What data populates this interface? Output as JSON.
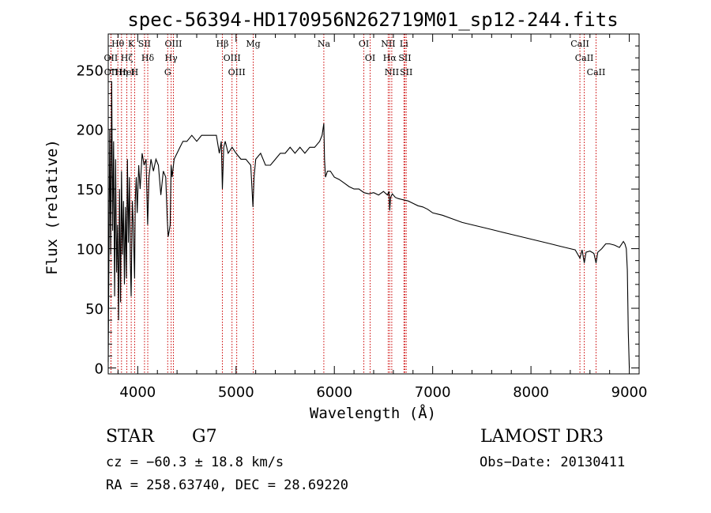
{
  "chart_data": {
    "type": "line",
    "title": "spec-56394-HD170956N262719M01_sp12-244.fits",
    "xlabel": "Wavelength (Å)",
    "ylabel": "Flux (relative)",
    "xlim": [
      3700,
      9100
    ],
    "ylim": [
      -5,
      280
    ],
    "xticks": [
      4000,
      5000,
      6000,
      7000,
      8000,
      9000
    ],
    "yticks": [
      0,
      50,
      100,
      150,
      200,
      250
    ],
    "line_color": "#000000",
    "marker_color": "#cc0000",
    "spectrum": {
      "name": "flux",
      "x": [
        3700,
        3715,
        3725,
        3735,
        3745,
        3755,
        3765,
        3775,
        3785,
        3795,
        3805,
        3815,
        3825,
        3835,
        3845,
        3855,
        3865,
        3875,
        3885,
        3895,
        3905,
        3915,
        3925,
        3933,
        3945,
        3955,
        3968,
        3975,
        3985,
        3995,
        4010,
        4025,
        4045,
        4065,
        4085,
        4101,
        4115,
        4135,
        4160,
        4185,
        4210,
        4235,
        4260,
        4285,
        4300,
        4310,
        4320,
        4330,
        4340,
        4350,
        4370,
        4400,
        4430,
        4460,
        4500,
        4550,
        4600,
        4650,
        4700,
        4750,
        4800,
        4830,
        4850,
        4861,
        4875,
        4890,
        4920,
        4960,
        5000,
        5050,
        5100,
        5150,
        5172,
        5183,
        5200,
        5250,
        5300,
        5350,
        5400,
        5450,
        5500,
        5550,
        5600,
        5650,
        5700,
        5750,
        5800,
        5850,
        5875,
        5893,
        5900,
        5910,
        5930,
        5960,
        6000,
        6050,
        6100,
        6150,
        6200,
        6250,
        6300,
        6350,
        6400,
        6450,
        6500,
        6540,
        6555,
        6563,
        6572,
        6590,
        6620,
        6650,
        6700,
        6750,
        6800,
        6850,
        6900,
        6950,
        7000,
        7100,
        7200,
        7300,
        7400,
        7500,
        7600,
        7700,
        7800,
        7900,
        8000,
        8100,
        8200,
        8300,
        8400,
        8450,
        8498,
        8520,
        8542,
        8560,
        8600,
        8640,
        8662,
        8680,
        8720,
        8760,
        8800,
        8850,
        8900,
        8940,
        8955,
        8970,
        8980,
        8990,
        9000
      ],
      "y": [
        5,
        200,
        95,
        240,
        115,
        190,
        60,
        175,
        80,
        120,
        40,
        150,
        55,
        165,
        95,
        140,
        70,
        135,
        75,
        175,
        105,
        160,
        90,
        60,
        140,
        120,
        75,
        140,
        160,
        130,
        170,
        150,
        180,
        170,
        175,
        120,
        160,
        175,
        165,
        175,
        170,
        145,
        165,
        160,
        125,
        110,
        115,
        120,
        170,
        160,
        175,
        180,
        185,
        190,
        190,
        195,
        190,
        195,
        195,
        195,
        195,
        180,
        190,
        150,
        185,
        190,
        180,
        185,
        180,
        175,
        175,
        170,
        135,
        160,
        175,
        180,
        170,
        170,
        175,
        180,
        180,
        185,
        180,
        185,
        180,
        185,
        185,
        190,
        195,
        205,
        175,
        160,
        165,
        165,
        160,
        158,
        155,
        152,
        150,
        150,
        147,
        146,
        147,
        145,
        148,
        145,
        148,
        132,
        143,
        146,
        143,
        142,
        141,
        140,
        138,
        136,
        135,
        133,
        130,
        128,
        125,
        122,
        120,
        118,
        116,
        114,
        112,
        110,
        108,
        106,
        104,
        102,
        100,
        99,
        92,
        99,
        88,
        97,
        98,
        96,
        88,
        97,
        100,
        104,
        104,
        103,
        101,
        106,
        104,
        100,
        82,
        30,
        0
      ]
    },
    "spectral_lines": [
      {
        "label": "Hθ",
        "x": 3798
      },
      {
        "label": "OII",
        "x": 3727
      },
      {
        "label": "OII",
        "x": 3729
      },
      {
        "label": "Hη",
        "x": 3835
      },
      {
        "label": "Hζ",
        "x": 3889
      },
      {
        "label": "HeI",
        "x": 3889
      },
      {
        "label": "K",
        "x": 3934
      },
      {
        "label": "H",
        "x": 3969
      },
      {
        "label": "SII",
        "x": 4069
      },
      {
        "label": "Hδ",
        "x": 4102
      },
      {
        "label": "OIII",
        "x": 4363
      },
      {
        "label": "Hγ",
        "x": 4340
      },
      {
        "label": "G",
        "x": 4305
      },
      {
        "label": "Hβ",
        "x": 4861
      },
      {
        "label": "OIII",
        "x": 4959
      },
      {
        "label": "OIII",
        "x": 5007
      },
      {
        "label": "Mg",
        "x": 5175
      },
      {
        "label": "Na",
        "x": 5893
      },
      {
        "label": "OI",
        "x": 6300
      },
      {
        "label": "OI",
        "x": 6364
      },
      {
        "label": "NII",
        "x": 6548
      },
      {
        "label": "Hα",
        "x": 6563
      },
      {
        "label": "NII",
        "x": 6584
      },
      {
        "label": "Li",
        "x": 6708
      },
      {
        "label": "SII",
        "x": 6717
      },
      {
        "label": "SII",
        "x": 6731
      },
      {
        "label": "CaII",
        "x": 8498
      },
      {
        "label": "CaII",
        "x": 8542
      },
      {
        "label": "CaII",
        "x": 8662
      }
    ]
  },
  "info": {
    "object_type": "STAR",
    "spectral_class": "G7",
    "survey": "LAMOST DR3",
    "redshift": "cz = −60.3 ± 18.8 km/s",
    "obs_date": "Obs−Date: 20130411",
    "coords": "RA = 258.63740, DEC =  28.69220"
  }
}
